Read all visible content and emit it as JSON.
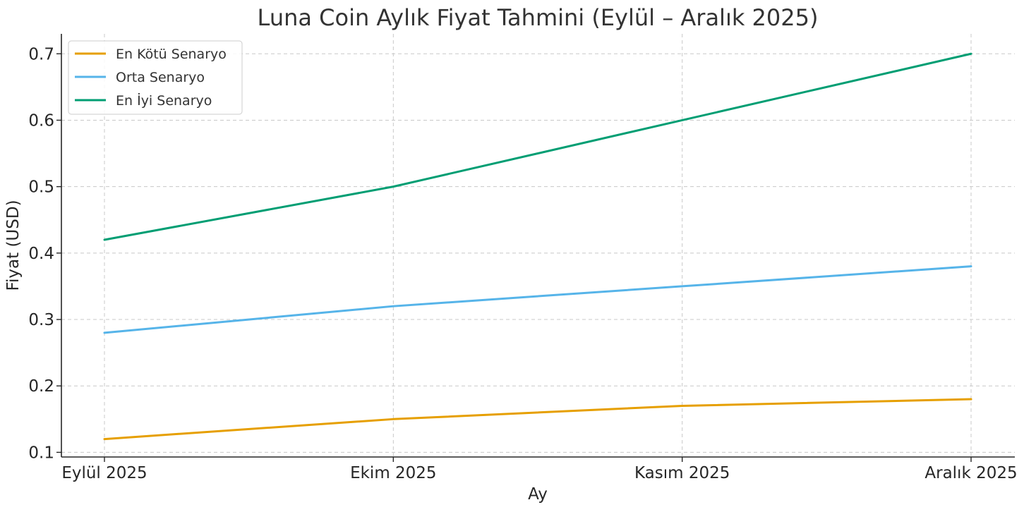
{
  "chart_data": {
    "type": "line",
    "title": "Luna Coin Aylık Fiyat Tahmini (Eylül – Aralık 2025)",
    "xlabel": "Ay",
    "ylabel": "Fiyat (USD)",
    "categories": [
      "Eylül 2025",
      "Ekim 2025",
      "Kasım 2025",
      "Aralık 2025"
    ],
    "yticks": [
      0.1,
      0.2,
      0.3,
      0.4,
      0.5,
      0.6,
      0.7
    ],
    "ylim": [
      0.093,
      0.73
    ],
    "grid": true,
    "legend_position": "top-left",
    "series": [
      {
        "name": "En Kötü Senaryo",
        "color": "#E69F00",
        "values": [
          0.12,
          0.15,
          0.17,
          0.18
        ]
      },
      {
        "name": "Orta Senaryo",
        "color": "#56B4E9",
        "values": [
          0.28,
          0.32,
          0.35,
          0.38
        ]
      },
      {
        "name": "En İyi Senaryo",
        "color": "#009E73",
        "values": [
          0.42,
          0.5,
          0.6,
          0.7
        ]
      }
    ]
  }
}
